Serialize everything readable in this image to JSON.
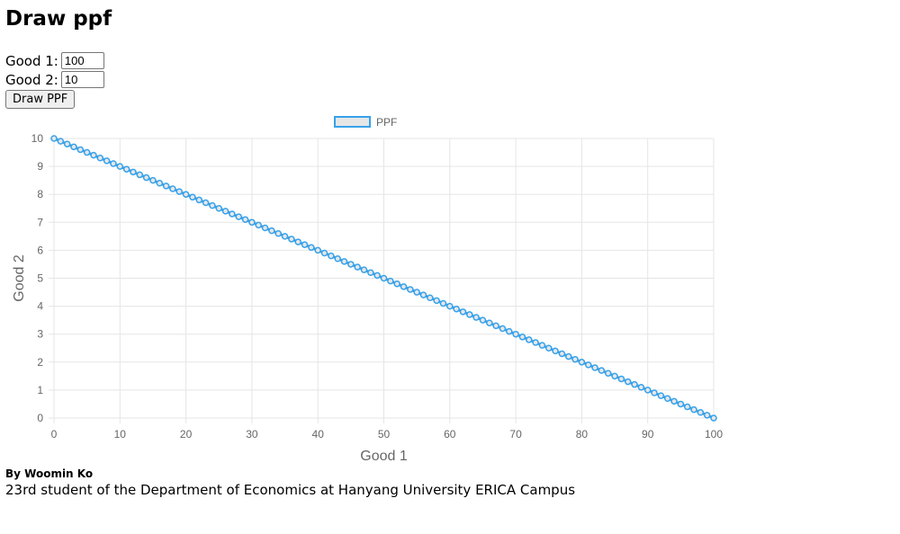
{
  "page": {
    "title": "Draw ppf",
    "good1_label": "Good 1:",
    "good1_value": "100",
    "good2_label": "Good 2:",
    "good2_value": "10",
    "draw_button": "Draw PPF",
    "author": "By Woomin Ko",
    "affiliation": "23rd student of the Department of Economics at Hanyang University ERICA Campus"
  },
  "chart_data": {
    "type": "line",
    "title": "",
    "xlabel": "Good 1",
    "ylabel": "Good 2",
    "xlim": [
      0,
      100
    ],
    "ylim": [
      0,
      10
    ],
    "x_ticks": [
      0,
      10,
      20,
      30,
      40,
      50,
      60,
      70,
      80,
      90,
      100
    ],
    "y_ticks": [
      0,
      1,
      2,
      3,
      4,
      5,
      6,
      7,
      8,
      9,
      10
    ],
    "grid": true,
    "legend": "top-center",
    "colors": {
      "line": "#36a2eb",
      "legend_fill": "#e6e6e6",
      "grid": "#e5e5e5",
      "tick": "#666666"
    },
    "series": [
      {
        "name": "PPF",
        "x": [
          0,
          1,
          2,
          3,
          4,
          5,
          6,
          7,
          8,
          9,
          10,
          11,
          12,
          13,
          14,
          15,
          16,
          17,
          18,
          19,
          20,
          21,
          22,
          23,
          24,
          25,
          26,
          27,
          28,
          29,
          30,
          31,
          32,
          33,
          34,
          35,
          36,
          37,
          38,
          39,
          40,
          41,
          42,
          43,
          44,
          45,
          46,
          47,
          48,
          49,
          50,
          51,
          52,
          53,
          54,
          55,
          56,
          57,
          58,
          59,
          60,
          61,
          62,
          63,
          64,
          65,
          66,
          67,
          68,
          69,
          70,
          71,
          72,
          73,
          74,
          75,
          76,
          77,
          78,
          79,
          80,
          81,
          82,
          83,
          84,
          85,
          86,
          87,
          88,
          89,
          90,
          91,
          92,
          93,
          94,
          95,
          96,
          97,
          98,
          99,
          100
        ],
        "y": [
          10,
          9.9,
          9.8,
          9.7,
          9.6,
          9.5,
          9.4,
          9.3,
          9.2,
          9.1,
          9,
          8.9,
          8.8,
          8.7,
          8.6,
          8.5,
          8.4,
          8.3,
          8.2,
          8.1,
          8,
          7.9,
          7.8,
          7.7,
          7.6,
          7.5,
          7.4,
          7.3,
          7.2,
          7.1,
          7,
          6.9,
          6.8,
          6.7,
          6.6,
          6.5,
          6.4,
          6.3,
          6.2,
          6.1,
          6,
          5.9,
          5.8,
          5.7,
          5.6,
          5.5,
          5.4,
          5.3,
          5.2,
          5.1,
          5,
          4.9,
          4.8,
          4.7,
          4.6,
          4.5,
          4.4,
          4.3,
          4.2,
          4.1,
          4,
          3.9,
          3.8,
          3.7,
          3.6,
          3.5,
          3.4,
          3.3,
          3.2,
          3.1,
          3,
          2.9,
          2.8,
          2.7,
          2.6,
          2.5,
          2.4,
          2.3,
          2.2,
          2.1,
          2,
          1.9,
          1.8,
          1.7,
          1.6,
          1.5,
          1.4,
          1.3,
          1.2,
          1.1,
          1,
          0.9,
          0.8,
          0.7,
          0.6,
          0.5,
          0.4,
          0.3,
          0.2,
          0.1,
          0
        ]
      }
    ]
  }
}
